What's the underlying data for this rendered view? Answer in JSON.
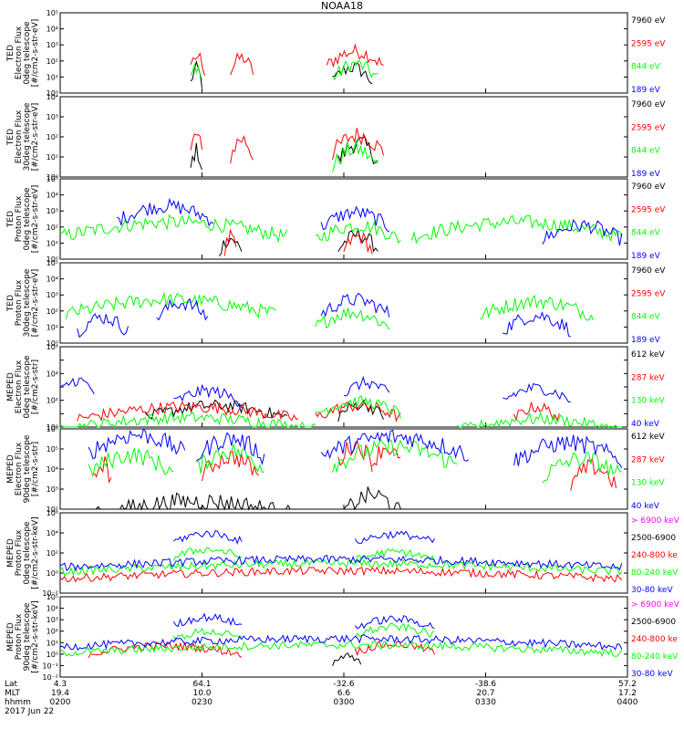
{
  "chart_data": {
    "type": "line",
    "title": "NOAA18",
    "x_ticks": [
      {
        "hhmm": "0200",
        "lat": "4.3",
        "mlt": "19.4"
      },
      {
        "hhmm": "0230",
        "lat": "64.1",
        "mlt": "10.0"
      },
      {
        "hhmm": "0300",
        "lat": "-32.6",
        "mlt": "6.6"
      },
      {
        "hhmm": "0330",
        "lat": "-38.6",
        "mlt": "20.7"
      },
      {
        "hhmm": "0400",
        "lat": "57.2",
        "mlt": "17.2"
      }
    ],
    "footer_labels": {
      "lat": "Lat",
      "mlt": "MLT",
      "hhmm": "hhmm",
      "date": "2017 Jun 22"
    },
    "panels": [
      {
        "ylabel": [
          "TED",
          "Electron Flux",
          "0deg telescope",
          "[#/cm2-s-str-eV]"
        ],
        "ylim_exp": [
          0,
          5
        ],
        "tick_labels": [
          "10⁰",
          "10¹",
          "10²",
          "10³",
          "10⁴",
          "10⁵"
        ],
        "series": [
          {
            "name": "7960 eV",
            "color": "#000000",
            "intervals": [
              [
                0.23,
                0.25,
                1.4
              ],
              [
                0.48,
                0.55,
                1.5
              ]
            ]
          },
          {
            "name": "2595 eV",
            "color": "#ff0000",
            "intervals": [
              [
                0.23,
                0.255,
                2.2
              ],
              [
                0.3,
                0.34,
                2.1
              ],
              [
                0.47,
                0.57,
                2.5
              ]
            ]
          },
          {
            "name": "844 eV",
            "color": "#00ff00",
            "intervals": [
              [
                0.23,
                0.25,
                1.6
              ],
              [
                0.48,
                0.56,
                1.7
              ]
            ]
          },
          {
            "name": "189 eV",
            "color": "#0000ff",
            "intervals": []
          }
        ]
      },
      {
        "ylabel": [
          "TED",
          "Electron Flux",
          "30deg telescope",
          "[#/cm2-s-str-eV]"
        ],
        "ylim_exp": [
          0,
          4
        ],
        "tick_labels": [
          "10⁰",
          "10¹",
          "10²",
          "10³",
          "10⁴"
        ],
        "series": [
          {
            "name": "7960 eV",
            "color": "#000000",
            "intervals": [
              [
                0.23,
                0.25,
                1.2
              ],
              [
                0.49,
                0.56,
                1.6
              ]
            ]
          },
          {
            "name": "2595 eV",
            "color": "#ff0000",
            "intervals": [
              [
                0.23,
                0.25,
                2.0
              ],
              [
                0.3,
                0.34,
                1.8
              ],
              [
                0.48,
                0.57,
                2.0
              ]
            ]
          },
          {
            "name": "844 eV",
            "color": "#00ff00",
            "intervals": [
              [
                0.48,
                0.56,
                1.3
              ]
            ]
          },
          {
            "name": "189 eV",
            "color": "#0000ff",
            "intervals": []
          }
        ]
      },
      {
        "ylabel": [
          "TED",
          "Proton Flux",
          "0deg telescope",
          "[#/cm2-s-str-eV]"
        ],
        "ylim_exp": [
          0,
          5
        ],
        "tick_labels": [
          "10⁰",
          "10¹",
          "10²",
          "10³",
          "10⁴",
          "10⁵"
        ],
        "series": [
          {
            "name": "7960 eV",
            "color": "#000000",
            "intervals": [
              [
                0.28,
                0.32,
                1.2
              ],
              [
                0.49,
                0.56,
                1.4
              ]
            ]
          },
          {
            "name": "2595 eV",
            "color": "#ff0000",
            "intervals": [
              [
                0.29,
                0.31,
                1.3
              ],
              [
                0.5,
                0.55,
                1.3
              ]
            ]
          },
          {
            "name": "844 eV",
            "color": "#00ff00",
            "intervals": [
              [
                0.0,
                0.4,
                2.2
              ],
              [
                0.45,
                0.6,
                2.0
              ],
              [
                0.62,
                0.99,
                2.2
              ]
            ]
          },
          {
            "name": "189 eV",
            "color": "#0000ff",
            "intervals": [
              [
                0.1,
                0.27,
                3.2
              ],
              [
                0.46,
                0.58,
                2.8
              ],
              [
                0.85,
                0.99,
                2.0
              ]
            ]
          }
        ]
      },
      {
        "ylabel": [
          "TED",
          "Proton Flux",
          "30deg telescope",
          "[#/cm2-s-str-eV]"
        ],
        "ylim_exp": [
          0,
          5
        ],
        "tick_labels": [
          "10⁰",
          "10¹",
          "10²",
          "10³",
          "10⁴",
          "10⁵"
        ],
        "series": [
          {
            "name": "7960 eV",
            "color": "#000000",
            "intervals": []
          },
          {
            "name": "2595 eV",
            "color": "#ff0000",
            "intervals": []
          },
          {
            "name": "844 eV",
            "color": "#00ff00",
            "intervals": [
              [
                0.01,
                0.38,
                2.6
              ],
              [
                0.45,
                0.58,
                1.8
              ],
              [
                0.74,
                0.94,
                2.5
              ]
            ]
          },
          {
            "name": "189 eV",
            "color": "#0000ff",
            "intervals": [
              [
                0.03,
                0.12,
                1.5
              ],
              [
                0.17,
                0.26,
                2.4
              ],
              [
                0.46,
                0.58,
                2.6
              ],
              [
                0.78,
                0.9,
                1.6
              ]
            ]
          }
        ]
      },
      {
        "ylabel": [
          "MEPED",
          "Electron Flux",
          "0deg telescope",
          "[#/cm2-s-str]"
        ],
        "ylim_exp": [
          0,
          6
        ],
        "tick_labels": [
          "10⁰",
          "",
          "10²",
          "",
          "10⁴",
          "",
          "10⁶"
        ],
        "series": [
          {
            "name": "612 keV",
            "color": "#000000",
            "intervals": [
              [
                0.15,
                0.4,
                1.5
              ],
              [
                0.49,
                0.57,
                1.6
              ]
            ]
          },
          {
            "name": "287 keV",
            "color": "#ff0000",
            "intervals": [
              [
                0.03,
                0.42,
                1.4
              ],
              [
                0.45,
                0.6,
                1.5
              ],
              [
                0.8,
                0.88,
                1.4
              ]
            ]
          },
          {
            "name": "130 keV",
            "color": "#00ff00",
            "intervals": [
              [
                0.0,
                0.45,
                0.6
              ],
              [
                0.45,
                0.6,
                1.8
              ],
              [
                0.7,
                0.99,
                0.5
              ]
            ]
          },
          {
            "name": "40 keV",
            "color": "#0000ff",
            "intervals": [
              [
                0.0,
                0.06,
                3.4
              ],
              [
                0.2,
                0.32,
                2.6
              ],
              [
                0.5,
                0.58,
                3.2
              ],
              [
                0.78,
                0.9,
                2.8
              ]
            ]
          }
        ]
      },
      {
        "ylabel": [
          "MEPED",
          "Electron Flux",
          "90deg telescope",
          "[#/cm2-s-str]"
        ],
        "ylim_exp": [
          2,
          6
        ],
        "tick_labels": [
          "10²",
          "10³",
          "10⁴",
          "10⁵",
          "10⁶"
        ],
        "series": [
          {
            "name": "612 keV",
            "color": "#000000",
            "intervals": [
              [
                0.04,
                0.44,
                2.3
              ],
              [
                0.5,
                0.6,
                2.6
              ]
            ]
          },
          {
            "name": "287 keV",
            "color": "#ff0000",
            "intervals": [
              [
                0.06,
                0.09,
                4.2
              ],
              [
                0.25,
                0.35,
                4.5
              ],
              [
                0.49,
                0.55,
                5.1
              ],
              [
                0.55,
                0.6,
                5.0
              ],
              [
                0.9,
                0.98,
                4.0
              ]
            ]
          },
          {
            "name": "130 keV",
            "color": "#00ff00",
            "intervals": [
              [
                0.05,
                0.2,
                4.6
              ],
              [
                0.24,
                0.36,
                4.8
              ],
              [
                0.48,
                0.7,
                5.0
              ],
              [
                0.85,
                0.99,
                4.4
              ]
            ]
          },
          {
            "name": "40 keV",
            "color": "#0000ff",
            "intervals": [
              [
                0.05,
                0.22,
                5.6
              ],
              [
                0.24,
                0.36,
                5.4
              ],
              [
                0.46,
                0.72,
                5.5
              ],
              [
                0.8,
                0.99,
                5.2
              ]
            ]
          }
        ]
      },
      {
        "ylabel": [
          "MEPED",
          "Proton Flux",
          "0deg telescope",
          "[#/cm2-s-str-keV]"
        ],
        "ylim_exp": [
          -3,
          6
        ],
        "tick_labels": [
          "10⁻²",
          "10⁰",
          "10²",
          "10⁴",
          "10⁶"
        ],
        "series": [
          {
            "name": "> 6900 keV",
            "color": "#ff00ff",
            "intervals": []
          },
          {
            "name": "2500-6900",
            "color": "#000000",
            "intervals": []
          },
          {
            "name": "240-800 ke",
            "color": "#ff0000",
            "intervals": [
              [
                0.0,
                0.99,
                -0.6
              ]
            ]
          },
          {
            "name": "80-240 keV",
            "color": "#00ff00",
            "intervals": [
              [
                0.0,
                0.99,
                0.2
              ],
              [
                0.2,
                0.32,
                1.8
              ],
              [
                0.52,
                0.66,
                1.5
              ]
            ]
          },
          {
            "name": "30-80 keV",
            "color": "#0000ff",
            "intervals": [
              [
                0.0,
                0.99,
                0.7
              ],
              [
                0.2,
                0.32,
                3.6
              ],
              [
                0.52,
                0.66,
                3.5
              ]
            ]
          }
        ]
      },
      {
        "ylabel": [
          "MEPED",
          "Proton Flux",
          "90deg telescope",
          "[#/cm2-s-str-keV]"
        ],
        "ylim_exp": [
          -3,
          6
        ],
        "tick_labels": [
          "10⁻²",
          "10⁻¹",
          "10⁰",
          "10¹",
          "10²",
          "10³",
          "10⁴",
          "10⁵"
        ],
        "series": [
          {
            "name": "> 6900 keV",
            "color": "#ff00ff",
            "intervals": []
          },
          {
            "name": "2500-6900",
            "color": "#000000",
            "intervals": [
              [
                0.48,
                0.53,
                -0.8
              ]
            ]
          },
          {
            "name": "240-800 ke",
            "color": "#ff0000",
            "intervals": [
              [
                0.05,
                0.32,
                0.4
              ],
              [
                0.52,
                0.66,
                0.6
              ]
            ]
          },
          {
            "name": "80-240 keV",
            "color": "#00ff00",
            "intervals": [
              [
                0.0,
                0.99,
                0.5
              ],
              [
                0.2,
                0.32,
                2.0
              ],
              [
                0.52,
                0.66,
                2.5
              ]
            ]
          },
          {
            "name": "30-80 keV",
            "color": "#0000ff",
            "intervals": [
              [
                0.0,
                0.99,
                1.2
              ],
              [
                0.2,
                0.32,
                3.6
              ],
              [
                0.52,
                0.66,
                3.4
              ]
            ]
          }
        ]
      }
    ]
  }
}
